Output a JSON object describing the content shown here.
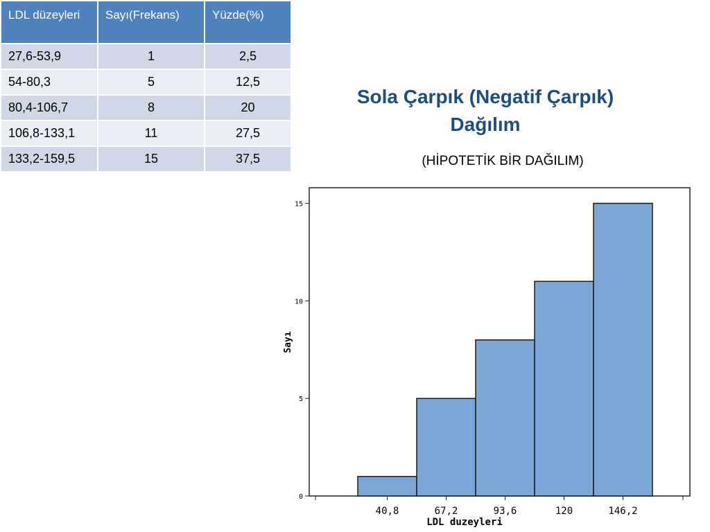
{
  "table": {
    "headers": [
      "LDL düzeyleri",
      "Sayı(Frekans)",
      "Yüzde(%)"
    ],
    "rows": [
      [
        "27,6-53,9",
        "1",
        "2,5"
      ],
      [
        "54-80,3",
        "5",
        "12,5"
      ],
      [
        "80,4-106,7",
        "8",
        "20"
      ],
      [
        "106,8-133,1",
        "11",
        "27,5"
      ],
      [
        "133,2-159,5",
        "15",
        "37,5"
      ]
    ]
  },
  "title": "Sola Çarpık (Negatif Çarpık) Dağılım",
  "subtitle": "(HİPOTETİK BİR DAĞILIM)",
  "colors": {
    "bar_fill": "#7ba7d6",
    "header_bg": "#4f81bd",
    "title": "#1f4e79"
  },
  "chart_data": {
    "type": "bar",
    "categories": [
      "40,8",
      "67,2",
      "93,6",
      "120",
      "146,2"
    ],
    "values": [
      1,
      5,
      8,
      11,
      15
    ],
    "xlabel": "LDL duzeyleri",
    "ylabel": "Sayı",
    "yticks": [
      "0",
      "5",
      "10",
      "15"
    ],
    "ylim": [
      0,
      15.8
    ],
    "grid": false
  }
}
